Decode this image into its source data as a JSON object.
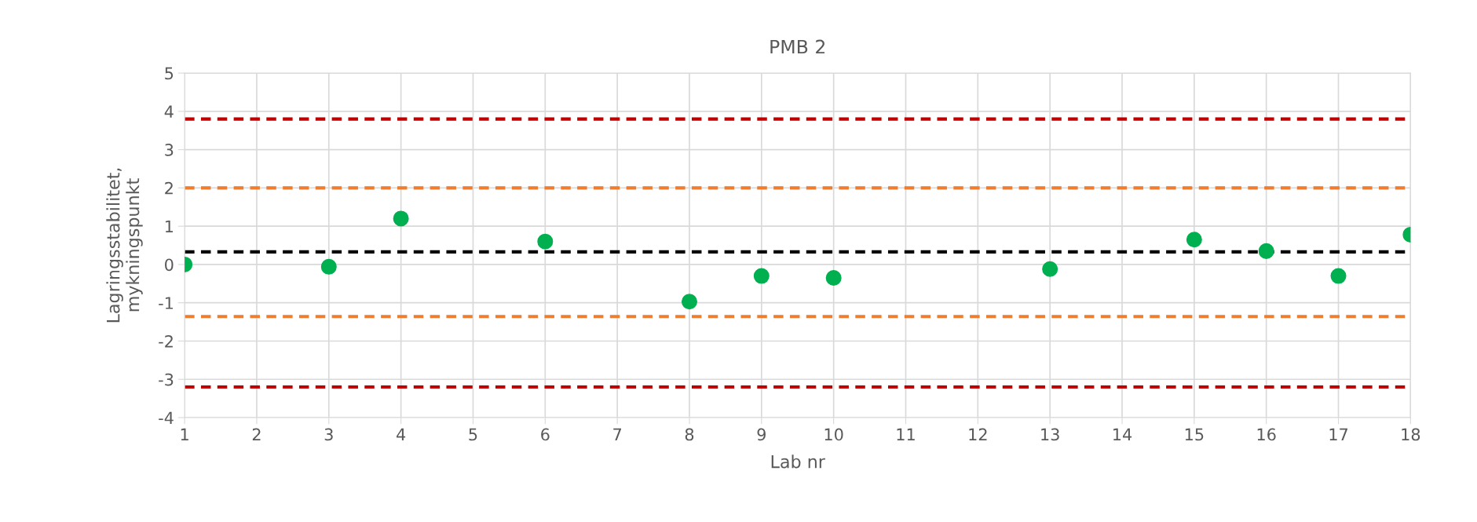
{
  "chart_data": {
    "type": "scatter",
    "title": "PMB 2",
    "xlabel": "Lab nr",
    "ylabel": "Lagringsstabilitet,\nmykningspunkt",
    "x": [
      1,
      3,
      4,
      6,
      8,
      9,
      10,
      13,
      15,
      16,
      17,
      18
    ],
    "series": [
      {
        "color": "#00b050",
        "values": [
          0.0,
          -0.06,
          1.2,
          0.6,
          -0.97,
          -0.3,
          -0.35,
          -0.12,
          0.65,
          0.35,
          -0.3,
          0.78
        ]
      }
    ],
    "xlim": [
      1,
      18
    ],
    "xticks": [
      1,
      2,
      3,
      4,
      5,
      6,
      7,
      8,
      9,
      10,
      11,
      12,
      13,
      14,
      15,
      16,
      17,
      18
    ],
    "ylim": [
      -4,
      5
    ],
    "yticks": [
      -4,
      -3,
      -2,
      -1,
      0,
      1,
      2,
      3,
      4,
      5
    ],
    "grid": true,
    "marker": "circle",
    "ref_lines": [
      {
        "axis": "y",
        "value": 3.8,
        "color": "#c00000",
        "line_style": "dashed"
      },
      {
        "axis": "y",
        "value": 2.0,
        "color": "#ed7d31",
        "line_style": "dashed"
      },
      {
        "axis": "y",
        "value": 0.33,
        "color": "#000000",
        "line_style": "dashed"
      },
      {
        "axis": "y",
        "value": -1.36,
        "color": "#ed7d31",
        "line_style": "dashed"
      },
      {
        "axis": "y",
        "value": -3.2,
        "color": "#c00000",
        "line_style": "dashed"
      }
    ]
  }
}
